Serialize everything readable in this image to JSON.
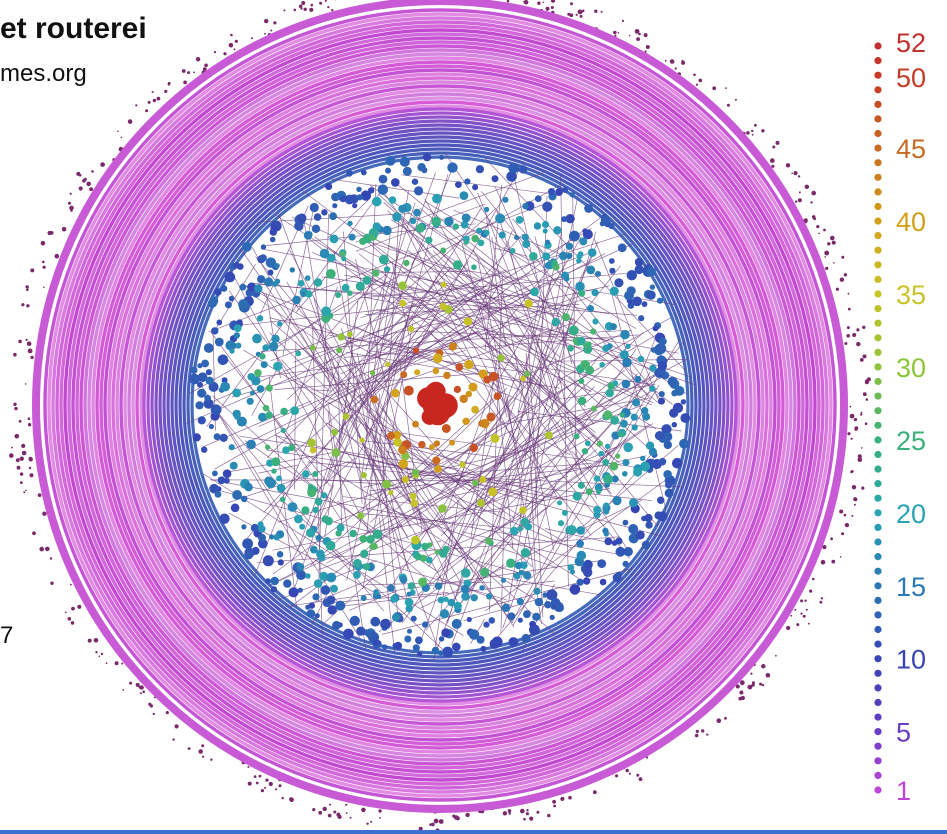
{
  "header": {
    "title": "et routerei",
    "subtitle": "mes.org",
    "side_number": "7"
  },
  "legend": {
    "ticks": [
      {
        "value": 52,
        "label": "52",
        "color": "#c0302e"
      },
      {
        "value": 50,
        "label": "50",
        "color": "#c63a26"
      },
      {
        "value": 45,
        "label": "45",
        "color": "#c86a24"
      },
      {
        "value": 40,
        "label": "40",
        "color": "#d4a01a"
      },
      {
        "value": 35,
        "label": "35",
        "color": "#c8c428"
      },
      {
        "value": 30,
        "label": "30",
        "color": "#8cc43a"
      },
      {
        "value": 25,
        "label": "25",
        "color": "#3ab07a"
      },
      {
        "value": 20,
        "label": "20",
        "color": "#2aa4b4"
      },
      {
        "value": 15,
        "label": "15",
        "color": "#2a78b4"
      },
      {
        "value": 10,
        "label": "10",
        "color": "#3644b4"
      },
      {
        "value": 5,
        "label": "5",
        "color": "#6a3cc0"
      },
      {
        "value": 1,
        "label": "1",
        "color": "#c044d8"
      }
    ],
    "min": 1,
    "max": 52
  },
  "colors": {
    "outer_ring": "#c85ad6",
    "links": "#6a3a7a",
    "core": "#c8261e"
  }
}
